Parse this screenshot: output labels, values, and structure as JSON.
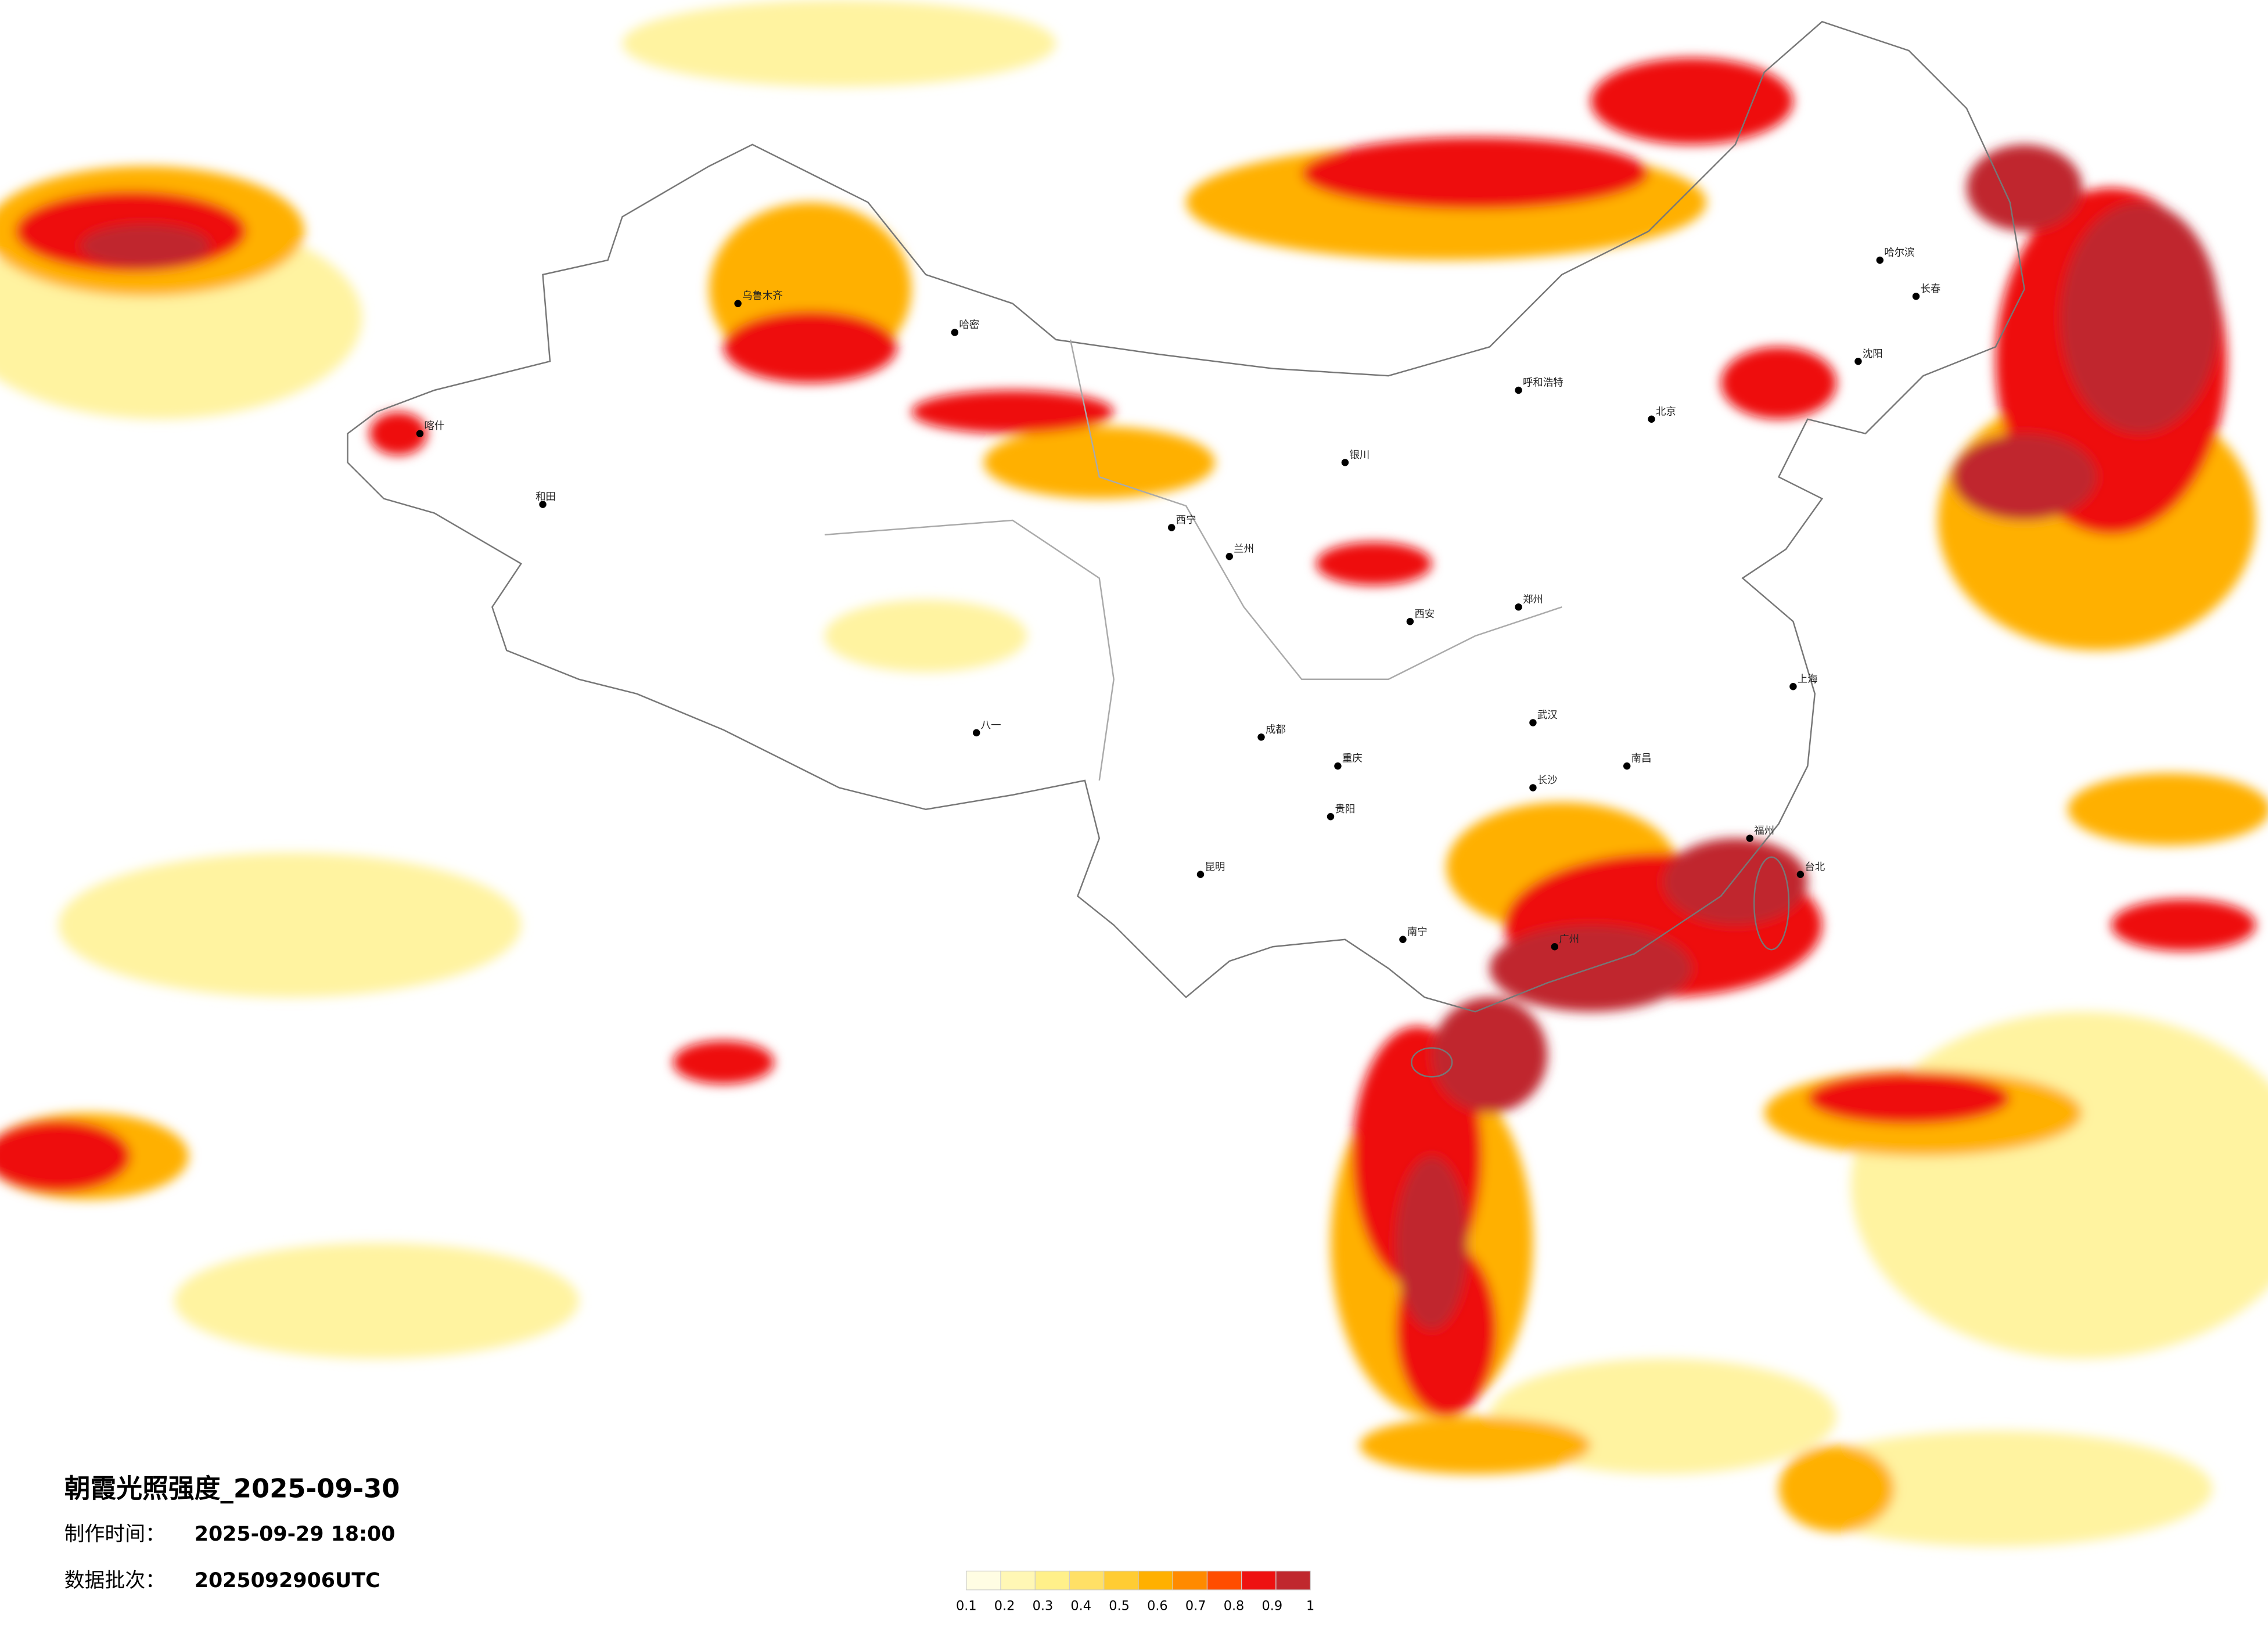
{
  "header": {
    "title": "朝霞光照强度_2025-09-30",
    "made_label": "制作时间：",
    "made_time": "2025-09-29 18:00",
    "batch_label": "数据批次：",
    "batch": "2025092906UTC"
  },
  "legend": {
    "colors": [
      "#fffde3",
      "#fff7b5",
      "#fff08a",
      "#ffe066",
      "#ffcc33",
      "#ffb000",
      "#ff8a00",
      "#ff4d00",
      "#ee1111",
      "#c0282e"
    ],
    "ticks": [
      0.1,
      0.2,
      0.3,
      0.4,
      0.5,
      0.6,
      0.7,
      0.8,
      0.9,
      1
    ]
  },
  "cities": [
    "北京",
    "上海",
    "广州",
    "成都",
    "重庆",
    "武汉",
    "西安",
    "郑州",
    "长沙",
    "南昌",
    "福州",
    "昆明",
    "贵阳",
    "南宁",
    "哈尔滨",
    "长春",
    "沈阳",
    "呼和浩特",
    "银川",
    "兰州",
    "西宁",
    "乌鲁木齐",
    "八一",
    "和田",
    "哈密",
    "喀什",
    "台北"
  ]
}
